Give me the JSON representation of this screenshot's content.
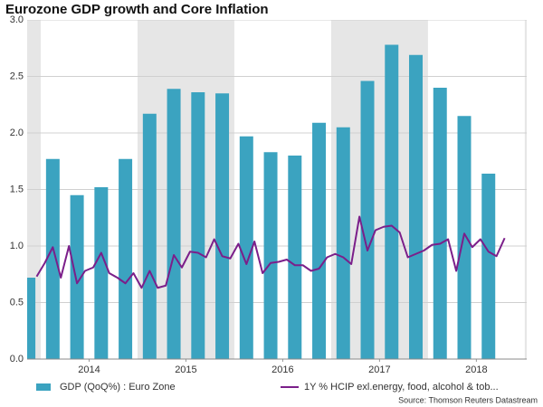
{
  "chart_data": {
    "type": "combo",
    "title": "Eurozone GDP growth and Core Inflation",
    "source": "Source: Thomson Reuters Datastream",
    "xlim": [
      2013.86,
      2019.02
    ],
    "xticks": [
      {
        "value": 2014.5,
        "label": "2014"
      },
      {
        "value": 2015.5,
        "label": "2015"
      },
      {
        "value": 2016.5,
        "label": "2016"
      },
      {
        "value": 2017.5,
        "label": "2017"
      },
      {
        "value": 2018.5,
        "label": "2018"
      }
    ],
    "ylim": [
      0,
      3
    ],
    "yticks": [
      {
        "value": 0,
        "label": "0.0"
      },
      0.5,
      {
        "value": 1,
        "label": "1.0"
      },
      1.5,
      {
        "value": 2,
        "label": "2.0"
      },
      2.5,
      {
        "value": 3,
        "label": "3.0"
      }
    ],
    "grid": true,
    "shade_alternate_years": true,
    "legend": "bottom",
    "series": [
      {
        "name": "GDP (QoQ%) : Euro Zone",
        "type": "bar",
        "color": "#3ba3c0",
        "x": [
          2013.875,
          2014.125,
          2014.375,
          2014.625,
          2014.875,
          2015.125,
          2015.375,
          2015.625,
          2015.875,
          2016.125,
          2016.375,
          2016.625,
          2016.875,
          2017.125,
          2017.375,
          2017.625,
          2017.875,
          2018.125,
          2018.375,
          2018.625
        ],
        "values": [
          0.72,
          1.77,
          1.45,
          1.52,
          1.77,
          2.17,
          2.39,
          2.36,
          2.35,
          1.97,
          1.83,
          1.8,
          2.09,
          2.05,
          2.46,
          2.78,
          2.69,
          2.4,
          2.15,
          1.64
        ]
      },
      {
        "name": "1Y % HCIP exl.energy, food, alcohol & tob...",
        "type": "line",
        "color": "#7b1f8a",
        "x": [
          2013.958,
          2014.042,
          2014.125,
          2014.208,
          2014.292,
          2014.375,
          2014.458,
          2014.542,
          2014.625,
          2014.708,
          2014.792,
          2014.875,
          2014.958,
          2015.042,
          2015.125,
          2015.208,
          2015.292,
          2015.375,
          2015.458,
          2015.542,
          2015.625,
          2015.708,
          2015.792,
          2015.875,
          2015.958,
          2016.042,
          2016.125,
          2016.208,
          2016.292,
          2016.375,
          2016.458,
          2016.542,
          2016.625,
          2016.708,
          2016.792,
          2016.875,
          2016.958,
          2017.042,
          2017.125,
          2017.208,
          2017.292,
          2017.375,
          2017.458,
          2017.542,
          2017.625,
          2017.708,
          2017.792,
          2017.875,
          2017.958,
          2018.042,
          2018.125,
          2018.208,
          2018.292,
          2018.375,
          2018.458,
          2018.542,
          2018.625,
          2018.708,
          2018.792
        ],
        "values": [
          0.73,
          0.85,
          0.99,
          0.72,
          1.0,
          0.67,
          0.78,
          0.81,
          0.94,
          0.76,
          0.72,
          0.67,
          0.76,
          0.63,
          0.78,
          0.63,
          0.65,
          0.92,
          0.81,
          0.95,
          0.94,
          0.9,
          1.06,
          0.91,
          0.89,
          1.02,
          0.84,
          1.04,
          0.76,
          0.85,
          0.86,
          0.88,
          0.83,
          0.83,
          0.78,
          0.8,
          0.9,
          0.93,
          0.9,
          0.84,
          1.26,
          0.96,
          1.14,
          1.17,
          1.18,
          1.12,
          0.9,
          0.93,
          0.96,
          1.01,
          1.02,
          1.06,
          0.78,
          1.11,
          0.99,
          1.06,
          0.95,
          0.91,
          1.07
        ]
      }
    ]
  }
}
